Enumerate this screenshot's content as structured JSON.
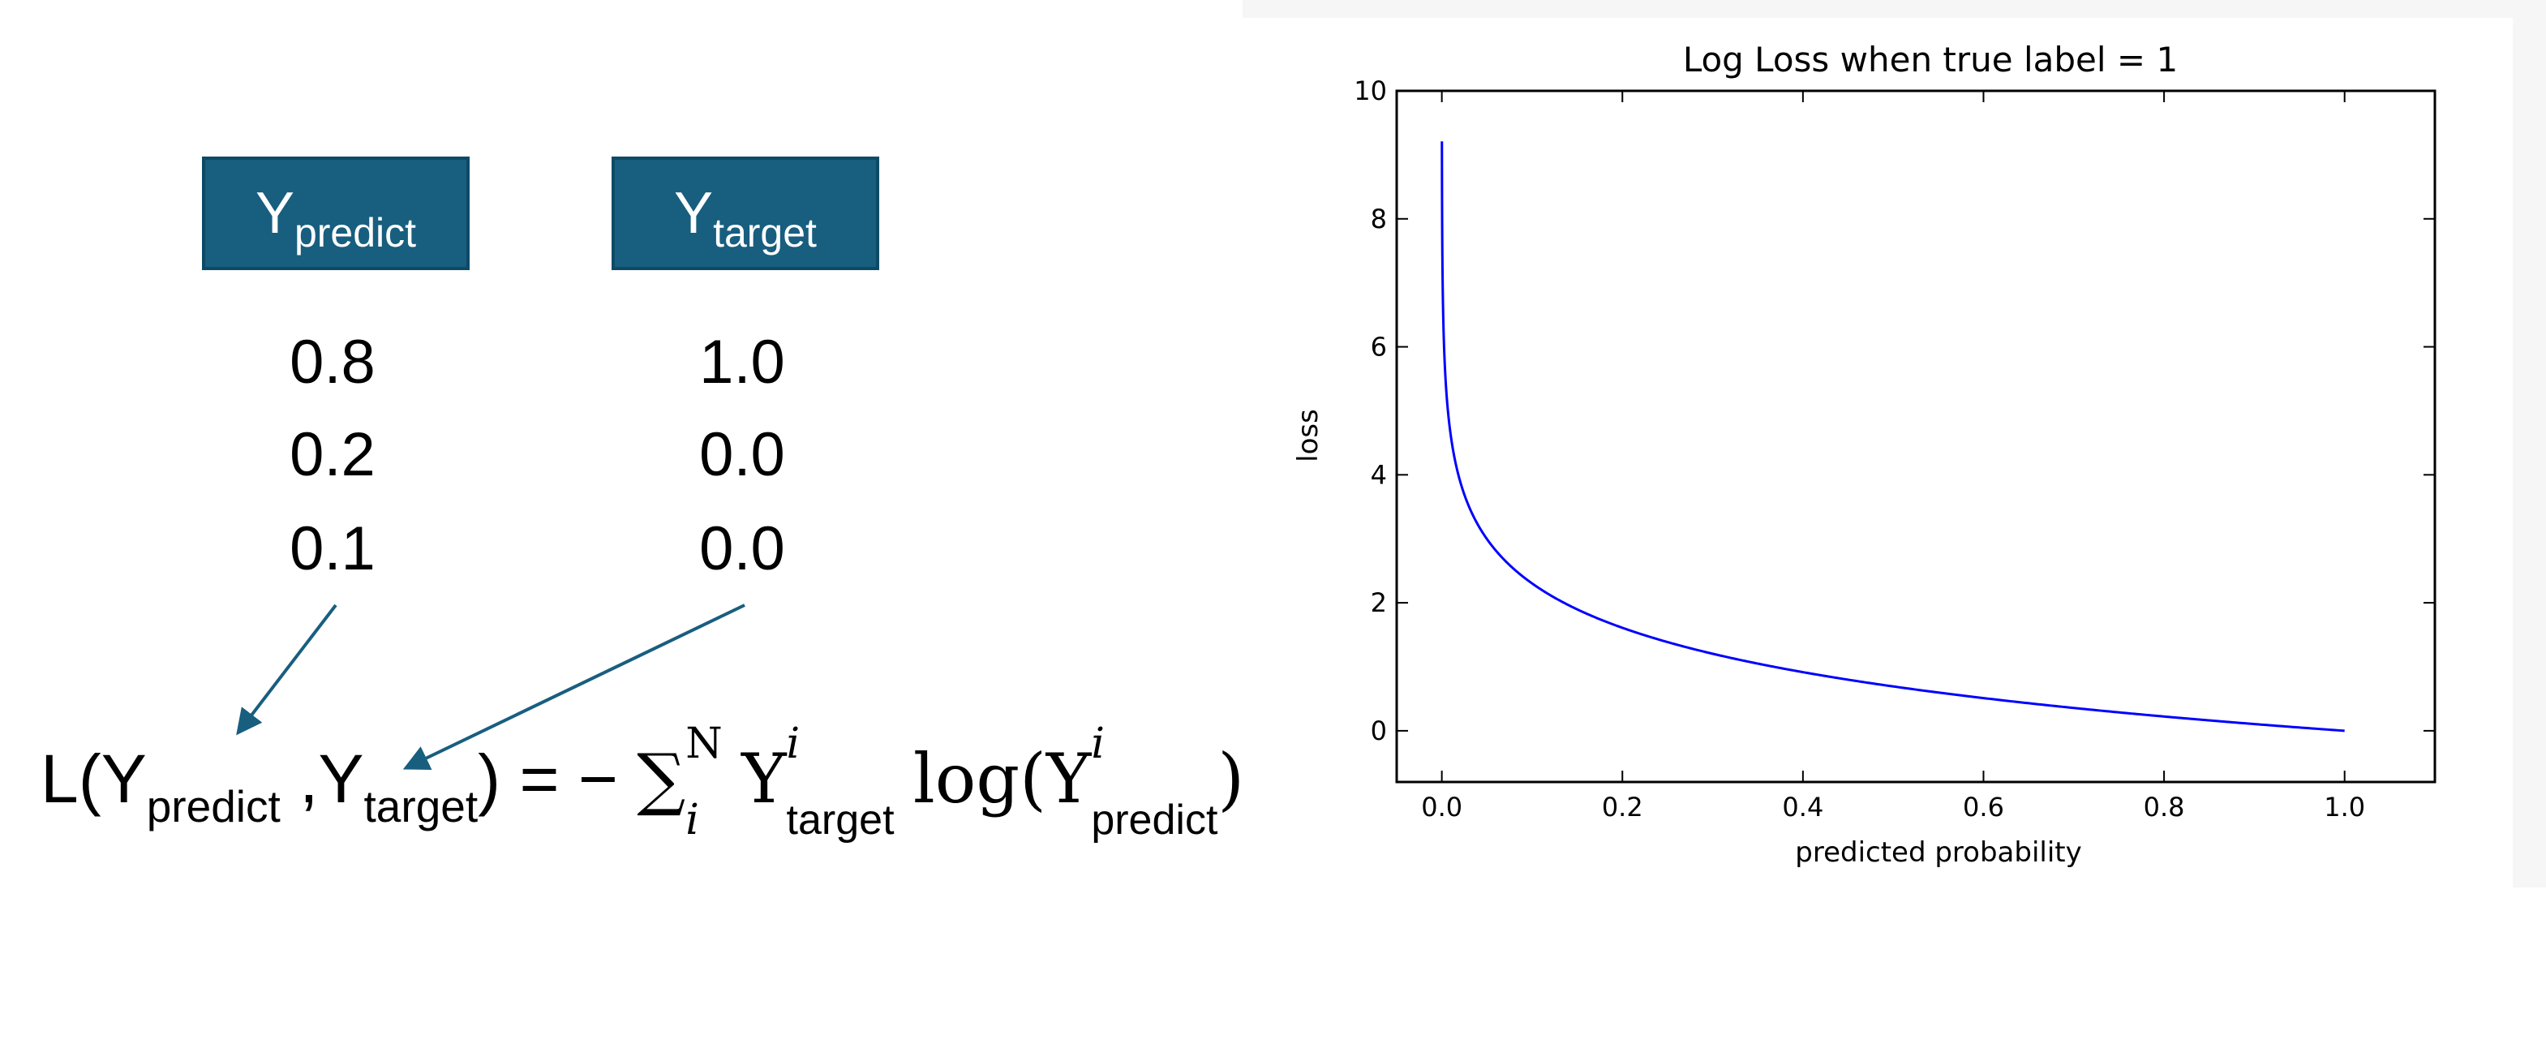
{
  "left": {
    "header_predict": {
      "main": "Y",
      "sub": "predict"
    },
    "header_target": {
      "main": "Y",
      "sub": "target"
    },
    "predict_values": [
      "0.8",
      "0.2",
      "0.1"
    ],
    "target_values": [
      "1.0",
      "0.0",
      "0.0"
    ],
    "arrow_color": "#185E7F",
    "box_color": "#185E7F"
  },
  "formula": {
    "lhs_prefix": "L(Y",
    "lhs_sub1": "predict",
    "lhs_sep": " ,Y",
    "lhs_sub2": "target",
    "lhs_close": ") = − ",
    "sum_symbol": "∑",
    "sum_upper": "N",
    "sum_lower": "i",
    "y1": "Y",
    "y1_sup": "i",
    "y1_sub": "target",
    "log_text": "log(Y",
    "y2_sup": "i",
    "y2_sub": "predict",
    "close": ")"
  },
  "chart_data": {
    "type": "line",
    "title": "Log Loss when true label = 1",
    "xlabel": "predicted probability",
    "ylabel": "loss",
    "xlim": [
      -0.05,
      1.1
    ],
    "ylim": [
      -0.8,
      10
    ],
    "xticks": [
      "0.0",
      "0.2",
      "0.4",
      "0.6",
      "0.8",
      "1.0"
    ],
    "xtick_values": [
      0.0,
      0.2,
      0.4,
      0.6,
      0.8,
      1.0
    ],
    "yticks": [
      "0",
      "2",
      "4",
      "6",
      "8",
      "10"
    ],
    "ytick_values": [
      0,
      2,
      4,
      6,
      8,
      10
    ],
    "series": [
      {
        "color": "#0000ff",
        "function": "-log(x)",
        "x_start": 0.0001,
        "x_end": 1.0
      }
    ],
    "grid": false,
    "legend": "none"
  }
}
